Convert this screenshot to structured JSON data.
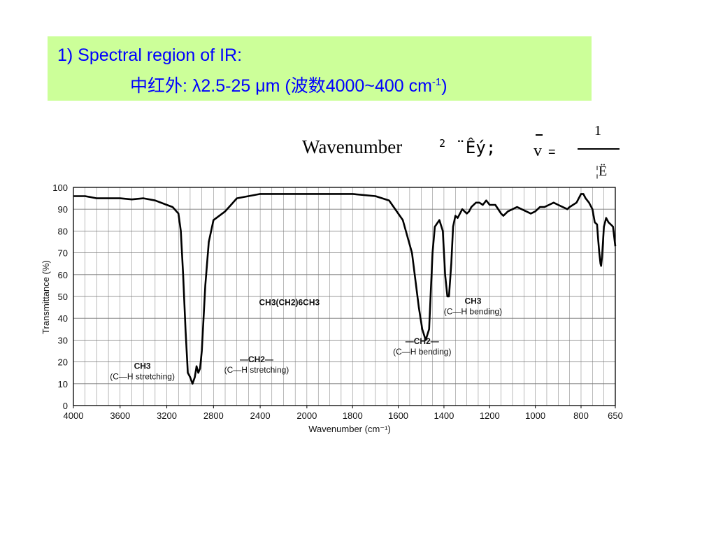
{
  "header": {
    "line1": "1) Spectral region of IR:",
    "line2_main": "中红外: λ2.5-25 μm (波数4000~400 cm",
    "line2_sup": "-1",
    "line2_end": ")"
  },
  "formula": {
    "label": "Wavenumber",
    "garbled_small": "2",
    "garbled_text": "¨Êý;",
    "symbol": "v",
    "equals": "=",
    "numerator": "1",
    "denominator": "¦Ë"
  },
  "chart_data": {
    "type": "line",
    "title": "",
    "xlabel": "Wavenumber (cm⁻¹)",
    "ylabel": "Transmittance (%)",
    "x_ticks": [
      4000,
      3600,
      3200,
      2800,
      2400,
      2000,
      1800,
      1600,
      1400,
      1200,
      1000,
      800,
      650
    ],
    "y_ticks": [
      0,
      10,
      20,
      30,
      40,
      50,
      60,
      70,
      80,
      90,
      100
    ],
    "xlim": [
      4000,
      650
    ],
    "ylim": [
      0,
      100
    ],
    "x_scale": "two linear segments (4000-2000 compressed, 2000-650 expanded)",
    "grid": true,
    "series": [
      {
        "name": "CH3(CH2)6CH3",
        "points": [
          [
            4000,
            96
          ],
          [
            3900,
            96
          ],
          [
            3800,
            95
          ],
          [
            3700,
            95
          ],
          [
            3600,
            95
          ],
          [
            3500,
            94.5
          ],
          [
            3400,
            95
          ],
          [
            3300,
            94
          ],
          [
            3200,
            92
          ],
          [
            3150,
            91
          ],
          [
            3100,
            88
          ],
          [
            3080,
            80
          ],
          [
            3060,
            60
          ],
          [
            3040,
            35
          ],
          [
            3020,
            15
          ],
          [
            3000,
            13
          ],
          [
            2980,
            10
          ],
          [
            2960,
            13
          ],
          [
            2945,
            18
          ],
          [
            2930,
            15
          ],
          [
            2915,
            17
          ],
          [
            2900,
            25
          ],
          [
            2885,
            40
          ],
          [
            2870,
            55
          ],
          [
            2855,
            65
          ],
          [
            2840,
            75
          ],
          [
            2800,
            85
          ],
          [
            2750,
            87
          ],
          [
            2700,
            89
          ],
          [
            2650,
            92
          ],
          [
            2600,
            95
          ],
          [
            2500,
            96
          ],
          [
            2400,
            97
          ],
          [
            2300,
            97
          ],
          [
            2200,
            97
          ],
          [
            2100,
            97
          ],
          [
            2000,
            97
          ],
          [
            1900,
            97
          ],
          [
            1800,
            97
          ],
          [
            1700,
            96
          ],
          [
            1640,
            94
          ],
          [
            1580,
            85
          ],
          [
            1540,
            70
          ],
          [
            1510,
            45
          ],
          [
            1495,
            35
          ],
          [
            1480,
            30
          ],
          [
            1465,
            35
          ],
          [
            1450,
            70
          ],
          [
            1440,
            82
          ],
          [
            1420,
            85
          ],
          [
            1405,
            80
          ],
          [
            1395,
            60
          ],
          [
            1385,
            50
          ],
          [
            1378,
            50
          ],
          [
            1368,
            65
          ],
          [
            1360,
            82
          ],
          [
            1350,
            87
          ],
          [
            1340,
            86
          ],
          [
            1320,
            90
          ],
          [
            1300,
            88
          ],
          [
            1290,
            89
          ],
          [
            1280,
            91
          ],
          [
            1260,
            93
          ],
          [
            1245,
            93
          ],
          [
            1230,
            92
          ],
          [
            1215,
            94
          ],
          [
            1200,
            92
          ],
          [
            1175,
            92
          ],
          [
            1150,
            88
          ],
          [
            1140,
            87
          ],
          [
            1120,
            89
          ],
          [
            1100,
            90
          ],
          [
            1080,
            91
          ],
          [
            1060,
            90
          ],
          [
            1040,
            89
          ],
          [
            1020,
            88
          ],
          [
            1000,
            89
          ],
          [
            980,
            91
          ],
          [
            960,
            91
          ],
          [
            940,
            92
          ],
          [
            920,
            93
          ],
          [
            900,
            92
          ],
          [
            880,
            91
          ],
          [
            860,
            90
          ],
          [
            850,
            91
          ],
          [
            820,
            93
          ],
          [
            800,
            97
          ],
          [
            790,
            97
          ],
          [
            780,
            95
          ],
          [
            765,
            93
          ],
          [
            750,
            90
          ],
          [
            740,
            84
          ],
          [
            730,
            83
          ],
          [
            725,
            76
          ],
          [
            720,
            70
          ],
          [
            715,
            65
          ],
          [
            712,
            64
          ],
          [
            708,
            68
          ],
          [
            700,
            82
          ],
          [
            690,
            86
          ],
          [
            680,
            84
          ],
          [
            670,
            83
          ],
          [
            660,
            82
          ],
          [
            650,
            73
          ]
        ]
      }
    ],
    "annotations": [
      {
        "text": "CH3(CH2)6CH3",
        "x": 2150,
        "y": 46
      },
      {
        "text": "CH3",
        "x": 3020,
        "y": 13,
        "line2": "(C—H stretching)"
      },
      {
        "text": "—CH2—",
        "x": 2910,
        "y": 15,
        "line2": "(C—H stretching)"
      },
      {
        "text": "—CH2—",
        "x": 1480,
        "y": 25,
        "line2": "(C—H bending)"
      },
      {
        "text": "CH3",
        "x": 1380,
        "y": 45,
        "line2": "(C—H bending)"
      }
    ],
    "colors": {
      "line": "#000000",
      "grid": "#777777",
      "axis": "#000000"
    }
  }
}
